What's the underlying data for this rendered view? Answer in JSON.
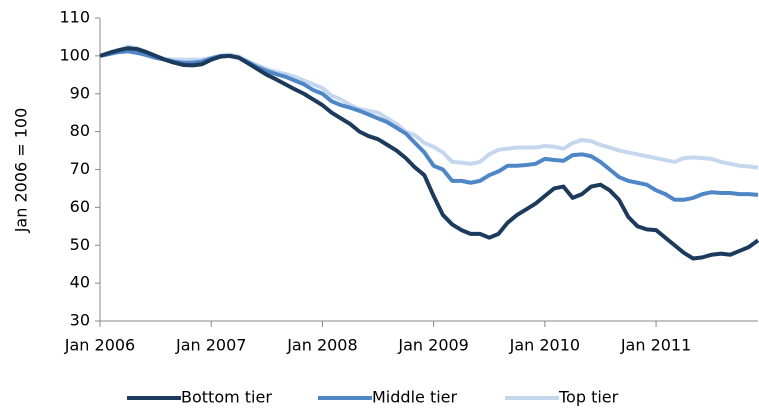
{
  "chart_data": {
    "type": "line",
    "y_label": "Jan 2006 = 100",
    "categories": [
      "Jan 2006",
      null,
      null,
      null,
      null,
      null,
      null,
      null,
      null,
      null,
      null,
      null,
      "Jan 2007",
      null,
      null,
      null,
      null,
      null,
      null,
      null,
      null,
      null,
      null,
      null,
      "Jan 2008",
      null,
      null,
      null,
      null,
      null,
      null,
      null,
      null,
      null,
      null,
      null,
      "Jan 2009",
      null,
      null,
      null,
      null,
      null,
      null,
      null,
      null,
      null,
      null,
      null,
      "Jan 2010",
      null,
      null,
      null,
      null,
      null,
      null,
      null,
      null,
      null,
      null,
      null,
      "Jan 2011",
      null,
      null,
      null,
      null,
      null,
      null,
      null,
      null,
      null,
      null,
      null
    ],
    "series": [
      {
        "name": "Bottom tier",
        "color": "#1b3a5c",
        "values": [
          100,
          100.8,
          101.5,
          102,
          101.8,
          101,
          100,
          99,
          98.2,
          97.6,
          97.5,
          97.8,
          99,
          99.8,
          100,
          99.5,
          98,
          96.5,
          95,
          93.8,
          92.5,
          91.2,
          90,
          88.5,
          87,
          85,
          83.5,
          82,
          80,
          78.8,
          78,
          76.5,
          75,
          73,
          70.5,
          68.5,
          63,
          58,
          55.5,
          54,
          53,
          53,
          52,
          53,
          56,
          58,
          59.5,
          61,
          63,
          65,
          65.5,
          62.5,
          63.5,
          65.5,
          66,
          64.5,
          62,
          57.5,
          55,
          54.2,
          54,
          52,
          50,
          48,
          46.5,
          46.8,
          47.5,
          47.8,
          47.5,
          48.5,
          49.5,
          51.3
        ]
      },
      {
        "name": "Middle tier",
        "color": "#4f86c6",
        "values": [
          100,
          100.5,
          101,
          101.2,
          100.8,
          100.2,
          99.5,
          99,
          98.5,
          98.2,
          98.2,
          98.5,
          99.3,
          100,
          100,
          99.5,
          98.3,
          97,
          96,
          95.2,
          94.5,
          93.5,
          92.5,
          91,
          90,
          88,
          87,
          86.3,
          85.5,
          84.5,
          83.5,
          82.5,
          81,
          79.5,
          77,
          74.5,
          71,
          70,
          67,
          67,
          66.5,
          67,
          68.5,
          69.5,
          71,
          71,
          71.2,
          71.5,
          72.8,
          72.5,
          72.3,
          73.8,
          74,
          73.5,
          72,
          70,
          68,
          67,
          66.5,
          66,
          64.5,
          63.5,
          62,
          62,
          62.5,
          63.5,
          64,
          63.8,
          63.8,
          63.5,
          63.5,
          63.3
        ]
      },
      {
        "name": "Top tier",
        "color": "#c5d7ee",
        "values": [
          100,
          100.8,
          101.5,
          102.5,
          102,
          101,
          99.8,
          99.2,
          99,
          99,
          99,
          99,
          99.5,
          100,
          100.3,
          99.8,
          98.5,
          97.5,
          96.5,
          95.8,
          95.2,
          94.5,
          93.5,
          92.5,
          91.5,
          89.5,
          88.5,
          87,
          86,
          85.5,
          85,
          83.5,
          82,
          80,
          79,
          77,
          76,
          74.5,
          72,
          71.8,
          71.5,
          72,
          74,
          75.2,
          75.5,
          75.8,
          75.8,
          75.8,
          76.2,
          76,
          75.5,
          77,
          77.8,
          77.5,
          76.5,
          75.8,
          75,
          74.5,
          74,
          73.5,
          73,
          72.5,
          72,
          73,
          73.2,
          73,
          72.8,
          72,
          71.5,
          71,
          70.8,
          70.5
        ]
      }
    ],
    "ylim": [
      30,
      110
    ],
    "yticks": [
      30,
      40,
      50,
      60,
      70,
      80,
      90,
      100,
      110
    ],
    "legend": "bottom"
  }
}
